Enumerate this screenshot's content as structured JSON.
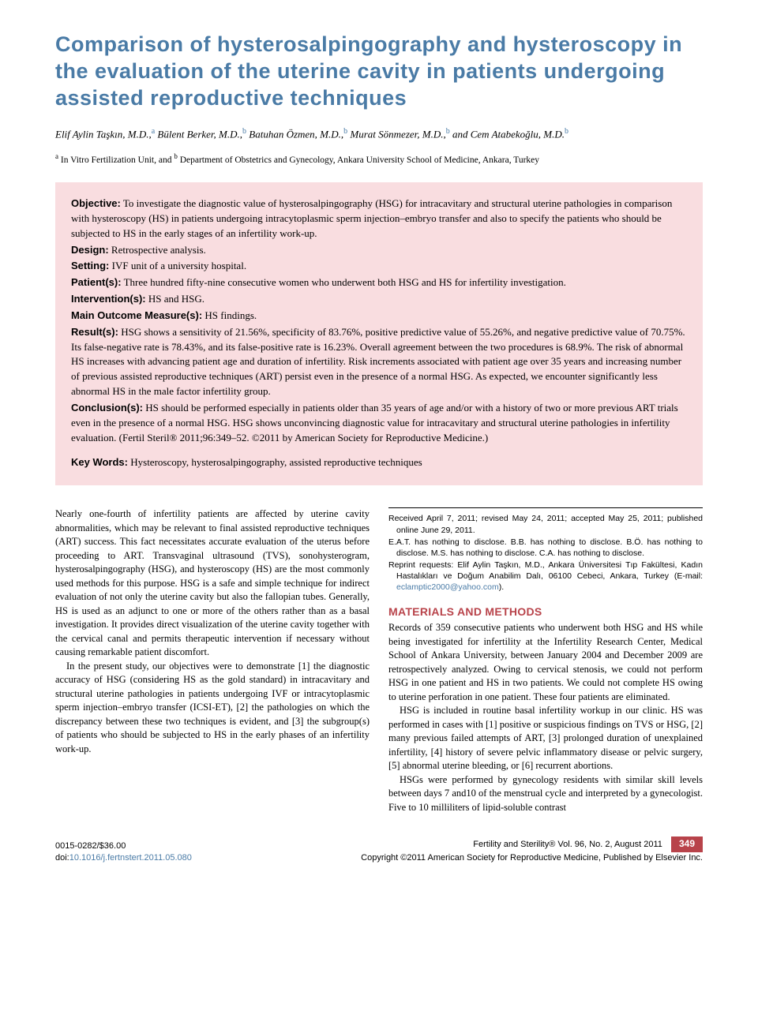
{
  "title": "Comparison of hysterosalpingography and hysteroscopy in the evaluation of the uterine cavity in patients undergoing assisted reproductive techniques",
  "authors_html": "Elif Aylin Taşkın, M.D.,<sup>a</sup> Bülent Berker, M.D.,<sup>b</sup> Batuhan Özmen, M.D.,<sup>b</sup> Murat Sönmezer, M.D.,<sup>b</sup> and Cem Atabekoğlu, M.D.<sup>b</sup>",
  "affiliations_html": "<sup>a</sup> In Vitro Fertilization Unit, and <sup>b</sup> Department of Obstetrics and Gynecology, Ankara University School of Medicine, Ankara, Turkey",
  "abstract": {
    "objective": {
      "label": "Objective:",
      "text": " To investigate the diagnostic value of hysterosalpingography (HSG) for intracavitary and structural uterine pathologies in comparison with hysteroscopy (HS) in patients undergoing intracytoplasmic sperm injection–embryo transfer and also to specify the patients who should be subjected to HS in the early stages of an infertility work-up."
    },
    "design": {
      "label": "Design:",
      "text": " Retrospective analysis."
    },
    "setting": {
      "label": "Setting:",
      "text": " IVF unit of a university hospital."
    },
    "patients": {
      "label": "Patient(s):",
      "text": " Three hundred fifty-nine consecutive women who underwent both HSG and HS for infertility investigation."
    },
    "interventions": {
      "label": "Intervention(s):",
      "text": " HS and HSG."
    },
    "outcomes": {
      "label": "Main Outcome Measure(s):",
      "text": " HS findings."
    },
    "results": {
      "label": "Result(s):",
      "text": " HSG shows a sensitivity of 21.56%, specificity of 83.76%, positive predictive value of 55.26%, and negative predictive value of 70.75%. Its false-negative rate is 78.43%, and its false-positive rate is 16.23%. Overall agreement between the two procedures is 68.9%. The risk of abnormal HS increases with advancing patient age and duration of infertility. Risk increments associated with patient age over 35 years and increasing number of previous assisted reproductive techniques (ART) persist even in the presence of a normal HSG. As expected, we encounter significantly less abnormal HS in the male factor infertility group."
    },
    "conclusions": {
      "label": "Conclusion(s):",
      "text": " HS should be performed especially in patients older than 35 years of age and/or with a history of two or more previous ART trials even in the presence of a normal HSG. HSG shows unconvincing diagnostic value for intracavitary and structural uterine pathologies in infertility evaluation. (Fertil Steril® 2011;96:349–52. ©2011 by American Society for Reproductive Medicine.)"
    },
    "keywords": {
      "label": "Key Words:",
      "text": " Hysteroscopy, hysterosalpingography, assisted reproductive techniques"
    }
  },
  "body": {
    "p1": "Nearly one-fourth of infertility patients are affected by uterine cavity abnormalities, which may be relevant to final assisted reproductive techniques (ART) success. This fact necessitates accurate evaluation of the uterus before proceeding to ART. Transvaginal ultrasound (TVS), sonohysterogram, hysterosalpingography (HSG), and hysteroscopy (HS) are the most commonly used methods for this purpose. HSG is a safe and simple technique for indirect evaluation of not only the uterine cavity but also the fallopian tubes. Generally, HS is used as an adjunct to one or more of the others rather than as a basal investigation. It provides direct visualization of the uterine cavity together with the cervical canal and permits therapeutic intervention if necessary without causing remarkable patient discomfort.",
    "p2": "In the present study, our objectives were to demonstrate [1] the diagnostic accuracy of HSG (considering HS as the gold standard) in intracavitary and structural uterine pathologies in patients undergoing IVF or intracytoplasmic sperm injection–embryo transfer (ICSI-ET), [2] the pathologies on which the discrepancy between these two techniques is evident, and [3] the subgroup(s) of patients who should be subjected to HS in the early phases of an infertility work-up.",
    "materials_heading": "MATERIALS AND METHODS",
    "m1": "Records of 359 consecutive patients who underwent both HSG and HS while being investigated for infertility at the Infertility Research Center, Medical School of Ankara University, between January 2004 and December 2009 are retrospectively analyzed. Owing to cervical stenosis, we could not perform HSG in one patient and HS in two patients. We could not complete HS owing to uterine perforation in one patient. These four patients are eliminated.",
    "m2": "HSG is included in routine basal infertility workup in our clinic. HS was performed in cases with [1] positive or suspicious findings on TVS or HSG, [2] many previous failed attempts of ART, [3] prolonged duration of unexplained infertility, [4] history of severe pelvic inflammatory disease or pelvic surgery, [5] abnormal uterine bleeding, or [6] recurrent abortions.",
    "m3": "HSGs were performed by gynecology residents with similar skill levels between days 7 and10 of the menstrual cycle and interpreted by a gynecologist. Five to 10 milliliters of lipid-soluble contrast"
  },
  "footnotes": {
    "f1": "Received April 7, 2011; revised May 24, 2011; accepted May 25, 2011; published online June 29, 2011.",
    "f2": "E.A.T. has nothing to disclose. B.B. has nothing to disclose. B.Ö. has nothing to disclose. M.S. has nothing to disclose. C.A. has nothing to disclose.",
    "f3_prefix": "Reprint requests: Elif Aylin Taşkın, M.D., Ankara Üniversitesi Tıp Fakültesi, Kadın Hastalıkları ve Doğum Anabilim Dalı, 06100 Cebeci, Ankara, Turkey (E-mail: ",
    "f3_email": "eclamptic2000@yahoo.com",
    "f3_suffix": ")."
  },
  "footer": {
    "issn": "0015-0282/$36.00",
    "doi_label": "doi:",
    "doi": "10.1016/j.fertnstert.2011.05.080",
    "journal": "Fertility and Sterility® Vol. 96, No. 2, August 2011",
    "copyright": "Copyright ©2011 American Society for Reproductive Medicine, Published by Elsevier Inc.",
    "page": "349"
  },
  "colors": {
    "title_blue": "#4a7ba6",
    "section_red": "#b8434a",
    "abstract_bg": "#f9dde0",
    "badge_bg": "#b8434a"
  }
}
